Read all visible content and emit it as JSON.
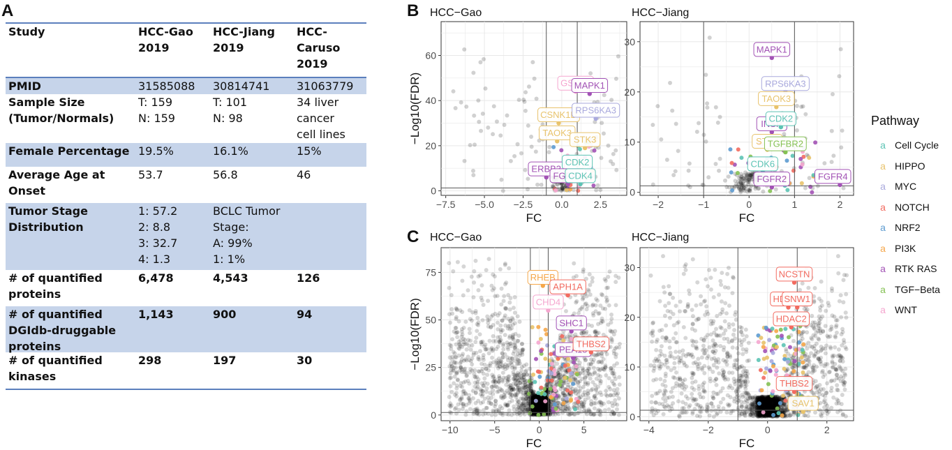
{
  "panel_labels": {
    "a": "A",
    "b": "B",
    "c": "C"
  },
  "table": {
    "header": [
      "Study",
      "HCC-Gao\n2019",
      "HCC-Jiang\n2019",
      "HCC-\nCaruso\n2019"
    ],
    "rows": [
      {
        "cells": [
          "PMID",
          "31585088",
          "30814741",
          "31063779"
        ],
        "shaded": true,
        "bold": false
      },
      {
        "cells": [
          "Sample Size\n(Tumor/Normals)",
          "T: 159\nN: 159",
          "T: 101\nN: 98",
          "34 liver\ncancer\ncell lines"
        ],
        "shaded": false,
        "bold": false
      },
      {
        "cells": [
          "Female Percentage",
          "19.5%",
          "16.1%",
          "15%"
        ],
        "shaded": true,
        "bold": false
      },
      {
        "cells": [
          "Average Age at\nOnset",
          "53.7",
          "56.8",
          "46"
        ],
        "shaded": false,
        "bold": false
      },
      {
        "cells": [
          "Tumor Stage\nDistribution",
          "1: 57.2\n2: 8.8\n3: 32.7\n4: 1.3",
          "BCLC Tumor\nStage:\nA: 99%\n1: 1%",
          ""
        ],
        "shaded": true,
        "bold": false
      },
      {
        "cells": [
          "# of quantified\nproteins",
          "6,478",
          "4,543",
          "126"
        ],
        "shaded": false,
        "bold": true
      },
      {
        "cells": [
          "# of quantified\nDGIdb-druggable\nproteins",
          "1,143",
          "900",
          "94"
        ],
        "shaded": true,
        "bold": true
      },
      {
        "cells": [
          "# of quantified\nkinases",
          "298",
          "197",
          "30"
        ],
        "shaded": false,
        "bold": true
      }
    ]
  },
  "legend": {
    "title": "Pathway",
    "items": [
      {
        "name": "Cell Cycle",
        "color": "#5cc3b4"
      },
      {
        "name": "HIPPO",
        "color": "#e8c36c"
      },
      {
        "name": "MYC",
        "color": "#a9a9dd"
      },
      {
        "name": "NOTCH",
        "color": "#f26b60"
      },
      {
        "name": "NRF2",
        "color": "#5d9bd0"
      },
      {
        "name": "PI3K",
        "color": "#f5a74a"
      },
      {
        "name": "RTK RAS",
        "color": "#a252b5"
      },
      {
        "name": "TGF−Beta",
        "color": "#85c154"
      },
      {
        "name": "WNT",
        "color": "#f5a6cf"
      }
    ]
  },
  "chart_data": [
    {
      "id": "B-gao",
      "type": "scatter",
      "title": "HCC−Gao",
      "xlabel": "FC",
      "ylabel": "−Log10(FDR)",
      "xlim": [
        -7.8,
        4.2
      ],
      "ylim": [
        -2,
        75
      ],
      "xticks": [
        -7.5,
        -5,
        -2.5,
        0,
        2.5
      ],
      "xticklabels": [
        "−7.5",
        "−5.0",
        "−2.5",
        "0.0",
        "2.5"
      ],
      "yticks": [
        0,
        20,
        40,
        60
      ],
      "vlines": [
        -1,
        1
      ],
      "hline": 1.3,
      "labels": [
        {
          "text": "GSK3B",
          "pathway": "WNT",
          "x": 0.9,
          "y": 44
        },
        {
          "text": "MAPK1",
          "pathway": "RTK RAS",
          "x": 1.8,
          "y": 43
        },
        {
          "text": "CSNK1D",
          "pathway": "HIPPO",
          "x": -0.2,
          "y": 30
        },
        {
          "text": "RPS6KA3",
          "pathway": "MYC",
          "x": 2.2,
          "y": 32
        },
        {
          "text": "TAOK3",
          "pathway": "HIPPO",
          "x": -0.3,
          "y": 22
        },
        {
          "text": "STK3",
          "pathway": "HIPPO",
          "x": 1.5,
          "y": 19
        },
        {
          "text": "ERBB3",
          "pathway": "RTK RAS",
          "x": -1,
          "y": 6
        },
        {
          "text": "CDK2",
          "pathway": "Cell Cycle",
          "x": 1,
          "y": 9
        },
        {
          "text": "FGFR4",
          "pathway": "RTK RAS",
          "x": 0.4,
          "y": 3
        },
        {
          "text": "CDK4",
          "pathway": "Cell Cycle",
          "x": 1.2,
          "y": 3
        }
      ]
    },
    {
      "id": "B-jiang",
      "type": "scatter",
      "title": "HCC−Jiang",
      "xlabel": "FC",
      "ylabel": "",
      "xlim": [
        -2.4,
        2.3
      ],
      "ylim": [
        -0.6,
        34
      ],
      "xticks": [
        -2,
        -1,
        0,
        1,
        2
      ],
      "xticklabels": [
        "−2",
        "−1",
        "0",
        "1",
        "2"
      ],
      "yticks": [
        0,
        10,
        20,
        30
      ],
      "vlines": [
        -1,
        1
      ],
      "hline": 1.3,
      "labels": [
        {
          "text": "MAPK1",
          "pathway": "RTK RAS",
          "x": 0.5,
          "y": 26.8
        },
        {
          "text": "RPS6KA3",
          "pathway": "MYC",
          "x": 0.8,
          "y": 20
        },
        {
          "text": "TAOK3",
          "pathway": "HIPPO",
          "x": 0.6,
          "y": 17
        },
        {
          "text": "INSR",
          "pathway": "RTK RAS",
          "x": 0.5,
          "y": 12
        },
        {
          "text": "CDK2",
          "pathway": "Cell Cycle",
          "x": 0.7,
          "y": 13
        },
        {
          "text": "STK4",
          "pathway": "HIPPO",
          "x": 0.4,
          "y": 8.5
        },
        {
          "text": "TGFBR2",
          "pathway": "TGF−Beta",
          "x": 0.8,
          "y": 8
        },
        {
          "text": "CDK6",
          "pathway": "Cell Cycle",
          "x": 0.3,
          "y": 4
        },
        {
          "text": "FGFR4",
          "pathway": "RTK RAS",
          "x": 2,
          "y": 1.5
        },
        {
          "text": "FGFR2",
          "pathway": "RTK RAS",
          "x": 0.5,
          "y": 1
        }
      ]
    },
    {
      "id": "C-gao",
      "type": "scatter",
      "title": "HCC−Gao",
      "xlabel": "FC",
      "ylabel": "−Log10(FDR)",
      "xlim": [
        -11,
        9.8
      ],
      "ylim": [
        -3,
        88
      ],
      "xticks": [
        -10,
        -5,
        0,
        5
      ],
      "xticklabels": [
        "−10",
        "−5",
        "0",
        "5"
      ],
      "yticks": [
        0,
        25,
        50,
        75
      ],
      "vlines": [
        -1,
        1
      ],
      "hline": 1.3,
      "labels": [
        {
          "text": "RHEB",
          "pathway": "PI3K",
          "x": 0.4,
          "y": 68
        },
        {
          "text": "APH1A",
          "pathway": "NOTCH",
          "x": 3.2,
          "y": 63
        },
        {
          "text": "CHD4",
          "pathway": "WNT",
          "x": 1,
          "y": 55
        },
        {
          "text": "SHC1",
          "pathway": "RTK RAS",
          "x": 3.6,
          "y": 44
        },
        {
          "text": "PEA15",
          "pathway": "RTK RAS",
          "x": 3.8,
          "y": 30
        },
        {
          "text": "THBS2",
          "pathway": "NOTCH",
          "x": 5.8,
          "y": 33
        }
      ]
    },
    {
      "id": "C-jiang",
      "type": "scatter",
      "title": "HCC−Jiang",
      "xlabel": "FC",
      "ylabel": "",
      "xlim": [
        -4.3,
        2.9
      ],
      "ylim": [
        -0.8,
        34
      ],
      "xticks": [
        -4,
        -2,
        0,
        2
      ],
      "xticklabels": [
        "−4",
        "−2",
        "0",
        "2"
      ],
      "yticks": [
        0,
        10,
        20,
        30
      ],
      "vlines": [
        -1,
        1
      ],
      "hline": 1.3,
      "labels": [
        {
          "text": "NCSTN",
          "pathway": "NOTCH",
          "x": 0.9,
          "y": 27
        },
        {
          "text": "HDAC1",
          "pathway": "NOTCH",
          "x": 0.7,
          "y": 22
        },
        {
          "text": "SNW1",
          "pathway": "NOTCH",
          "x": 1,
          "y": 22
        },
        {
          "text": "HDAC2",
          "pathway": "NOTCH",
          "x": 0.8,
          "y": 18
        },
        {
          "text": "THBS2",
          "pathway": "NOTCH",
          "x": 0.9,
          "y": 5
        },
        {
          "text": "SAV1",
          "pathway": "HIPPO",
          "x": 1.2,
          "y": 1
        }
      ]
    }
  ]
}
